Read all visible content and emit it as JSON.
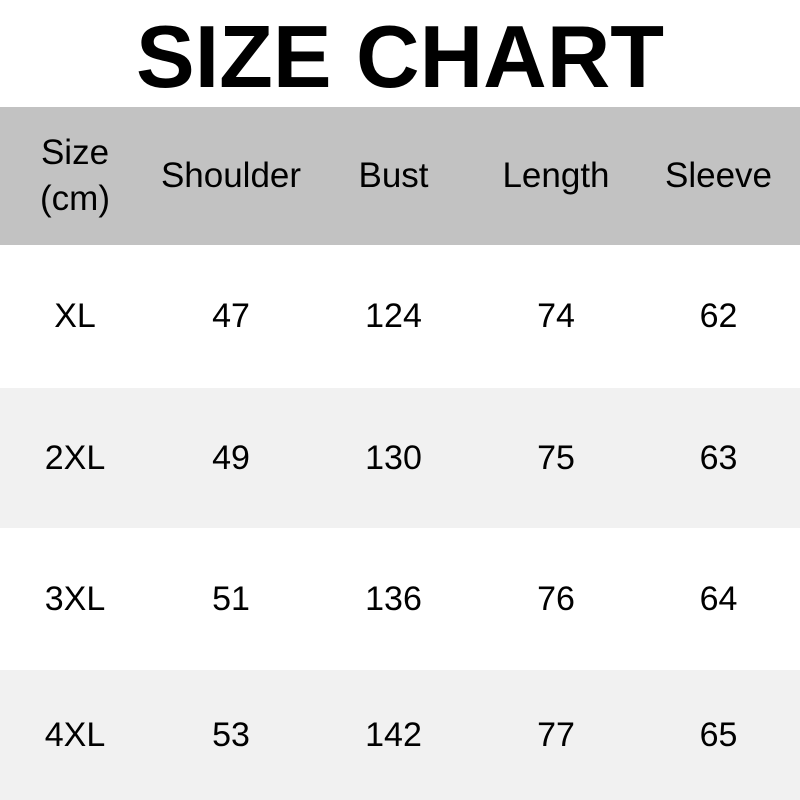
{
  "title": "SIZE CHART",
  "colors": {
    "header_bg": "#c2c2c2",
    "alt_row_bg": "#f1f1f1",
    "row_bg": "#ffffff",
    "text": "#000000"
  },
  "table": {
    "header": {
      "size_label_line1": "Size",
      "size_label_line2": "(cm)",
      "columns": [
        "Shoulder",
        "Bust",
        "Length",
        "Sleeve"
      ]
    },
    "rows": [
      {
        "size": "XL",
        "shoulder": "47",
        "bust": "124",
        "length": "74",
        "sleeve": "62"
      },
      {
        "size": "2XL",
        "shoulder": "49",
        "bust": "130",
        "length": "75",
        "sleeve": "63"
      },
      {
        "size": "3XL",
        "shoulder": "51",
        "bust": "136",
        "length": "76",
        "sleeve": "64"
      },
      {
        "size": "4XL",
        "shoulder": "53",
        "bust": "142",
        "length": "77",
        "sleeve": "65"
      }
    ]
  },
  "chart_data": {
    "type": "table",
    "title": "SIZE CHART",
    "columns": [
      "Size (cm)",
      "Shoulder",
      "Bust",
      "Length",
      "Sleeve"
    ],
    "rows": [
      [
        "XL",
        47,
        124,
        74,
        62
      ],
      [
        "2XL",
        49,
        130,
        75,
        63
      ],
      [
        "3XL",
        51,
        136,
        76,
        64
      ],
      [
        "4XL",
        53,
        142,
        77,
        65
      ]
    ]
  }
}
